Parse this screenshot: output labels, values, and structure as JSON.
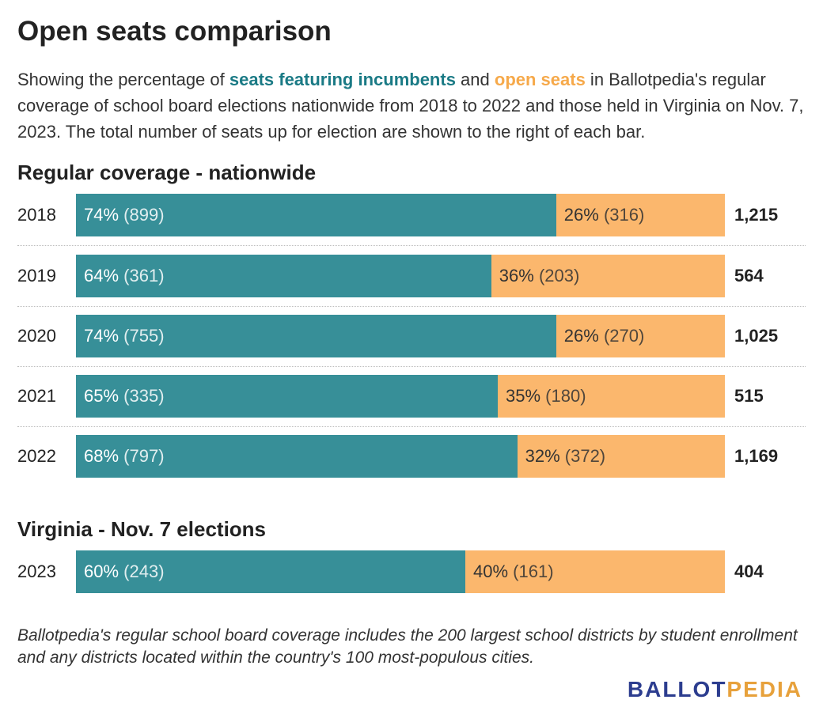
{
  "title": "Open seats comparison",
  "subtitle": {
    "part1": "Showing the percentage of ",
    "incumbents_label": "seats featuring incumbents",
    "part2": " and ",
    "open_label": "open seats",
    "part3": " in Ballotpedia's regular coverage of school board elections nationwide from 2018 to 2022 and those held in Virginia on Nov. 7, 2023. The total number of seats up for election are shown to the right of each bar."
  },
  "colors": {
    "incumbents": "#378f98",
    "open": "#fbb76d",
    "brand_blue": "#2c3d8f",
    "brand_gold": "#e7a13b"
  },
  "chart_data": [
    {
      "type": "bar",
      "orientation": "horizontal",
      "stacked": "percent",
      "title": "Regular coverage - nationwide",
      "categories": [
        "2018",
        "2019",
        "2020",
        "2021",
        "2022"
      ],
      "series": [
        {
          "name": "seats featuring incumbents",
          "values": [
            74,
            64,
            74,
            65,
            68
          ],
          "counts": [
            899,
            361,
            755,
            335,
            797
          ],
          "labels": [
            "74%",
            "64%",
            "74%",
            "65%",
            "68%"
          ],
          "count_labels": [
            "(899)",
            "(361)",
            "(755)",
            "(335)",
            "(797)"
          ]
        },
        {
          "name": "open seats",
          "values": [
            26,
            36,
            26,
            35,
            32
          ],
          "counts": [
            316,
            203,
            270,
            180,
            372
          ],
          "labels": [
            "26%",
            "36%",
            "26%",
            "35%",
            "32%"
          ],
          "count_labels": [
            "(316)",
            "(203)",
            "(270)",
            "(180)",
            "(372)"
          ]
        }
      ],
      "totals": [
        "1,215",
        "564",
        "1,025",
        "515",
        "1,169"
      ]
    },
    {
      "type": "bar",
      "orientation": "horizontal",
      "stacked": "percent",
      "title": "Virginia - Nov. 7 elections",
      "categories": [
        "2023"
      ],
      "series": [
        {
          "name": "seats featuring incumbents",
          "values": [
            60
          ],
          "counts": [
            243
          ],
          "labels": [
            "60%"
          ],
          "count_labels": [
            "(243)"
          ]
        },
        {
          "name": "open seats",
          "values": [
            40
          ],
          "counts": [
            161
          ],
          "labels": [
            "40%"
          ],
          "count_labels": [
            "(161)"
          ]
        }
      ],
      "totals": [
        "404"
      ]
    }
  ],
  "note": "Ballotpedia's regular school board coverage includes the 200 largest school districts by student enrollment and any districts located within the country's 100 most-populous cities.",
  "logo": {
    "part1": "BALLOT",
    "part2": "PEDIA"
  }
}
